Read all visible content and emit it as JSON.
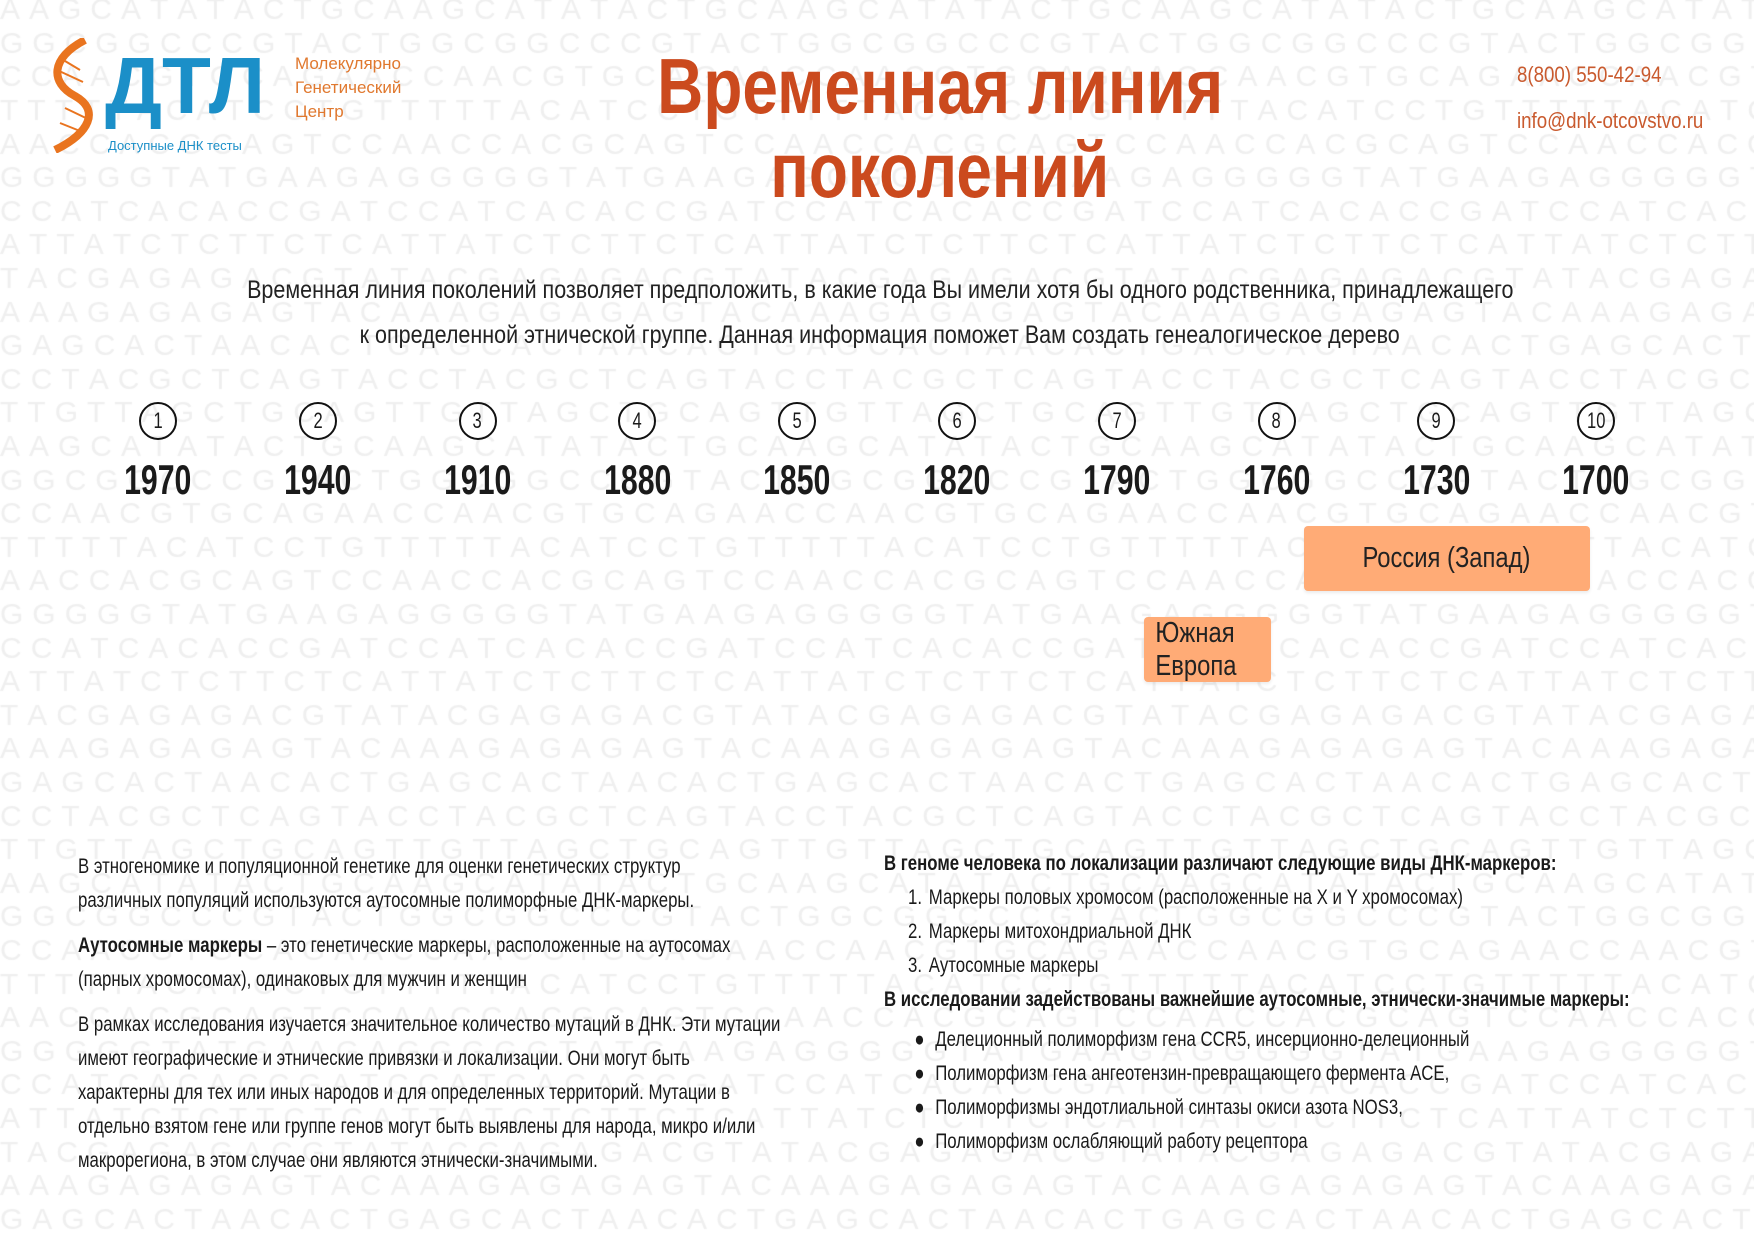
{
  "header": {
    "logo": {
      "main": "ДТЛ",
      "side": [
        "Молекулярно",
        "Генетический",
        "Центр"
      ],
      "sub": "Доступные ДНК тесты"
    },
    "title_lines": [
      "Временная линия",
      "поколений"
    ],
    "phone": "8(800) 550-42-94",
    "email": "info@dnk-otcovstvo.ru"
  },
  "intro_lines": [
    "Временная линия поколений позволяет предположить, в какие года Вы имели хотя бы одного родственника, принадлежащего",
    "к определенной этнической группе. Данная информация поможет Вам создать генеалогическое дерево"
  ],
  "timeline": [
    {
      "n": "1",
      "year": "1970"
    },
    {
      "n": "2",
      "year": "1940"
    },
    {
      "n": "3",
      "year": "1910"
    },
    {
      "n": "4",
      "year": "1880"
    },
    {
      "n": "5",
      "year": "1850"
    },
    {
      "n": "6",
      "year": "1820"
    },
    {
      "n": "7",
      "year": "1790"
    },
    {
      "n": "8",
      "year": "1760"
    },
    {
      "n": "9",
      "year": "1730"
    },
    {
      "n": "10",
      "year": "1700"
    }
  ],
  "regions": [
    {
      "label": "Россия (Запад)",
      "from_year": "1760",
      "to_year": "1700"
    },
    {
      "label": "Южная Европа",
      "from_year": "1790",
      "to_year": "1760"
    }
  ],
  "region_color": "#ffab76",
  "accent_color": "#cb4a1e",
  "left_text": {
    "p1": [
      "В этногеномике и популяционной генетике для оценки генетических структур",
      "различных популяций используются аутосомные полиморфные ДНК-маркеры."
    ],
    "p2_bold": "Аутосомные маркеры",
    "p2_rest": " – это генетические маркеры, расположенные на аутосомах",
    "p2_line2": "(парных хромосомах), одинаковых для мужчин и женщин",
    "p3": [
      "В рамках исследования изучается значительное количество мутаций в ДНК. Эти мутации",
      "имеют географические и этнические привязки и локализации. Они могут быть",
      "характерны для тех или иных народов и для определенных территорий. Мутации в",
      "отдельно взятом гене или группе генов могут быть выявлены для народа, микро и/или",
      "макрорегиона, в этом случае они являются этнически-значимыми."
    ]
  },
  "right_text": {
    "heading1": "В геноме человека по локализации различают следующие виды ДНК-маркеров:",
    "numbered": [
      "Маркеры половых хромосом (расположенные на X и Y хромосомах)",
      "Маркеры митохондриальной ДНК",
      "Аутосомные маркеры"
    ],
    "heading2": "В исследовании задействованы важнейшие аутосомные, этнически-значимые маркеры:",
    "bullets": [
      "Делеционный полиморфизм гена CCR5, инсерционно-делеционный",
      "Полиморфизм гена ангеотензин-превращающего фермента ACE,",
      "Полиморфизмы эндотлиальной синтазы окиси азота NOS3,",
      "Полиморфизм ослабляющий работу рецептора"
    ]
  },
  "background_sequences": [
    "AAGCATATACTGC",
    "GGCGGCCCGTACT",
    "CCAACGTGCAGAA",
    "TTTTTACATCCTG",
    "AACCACGCAGTCC",
    "GGGGGTATGAAGA",
    "CCATCACACCGAT",
    "ATTATCTCTTCTC",
    "TACGAGAGACGTA",
    "AAAGAGAGAGTAC",
    "GAGCACTAACACT",
    "CCTACGCTCAGTA",
    "TTGTTAGCTGCAG"
  ]
}
